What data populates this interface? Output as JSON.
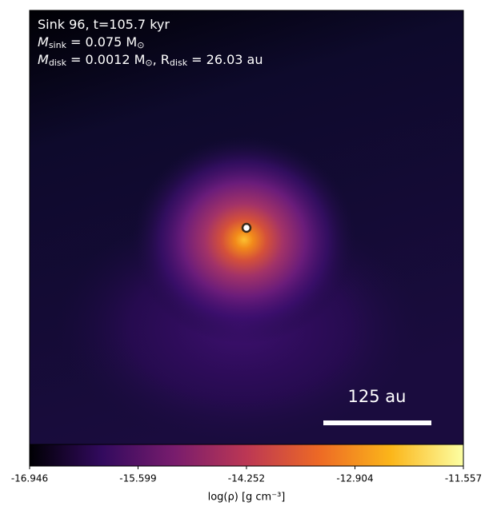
{
  "chart_data": {
    "type": "density-map",
    "annotation_lines": [
      [
        {
          "text": "Sink 96, t=105.7 kyr"
        }
      ],
      [
        {
          "text": "M"
        },
        {
          "sub": "sink"
        },
        {
          "text": " = 0.075 M"
        },
        {
          "sub": "⊙"
        }
      ],
      [
        {
          "text": "M"
        },
        {
          "sub": "disk"
        },
        {
          "text": " = 0.0012 M"
        },
        {
          "sub": "⊙"
        },
        {
          "text": ", R"
        },
        {
          "sub": "disk"
        },
        {
          "text": " = 26.03 au"
        }
      ]
    ],
    "scale_bar_label": "125 au",
    "colorbar": {
      "label": "log(ρ) [g cm⁻³]",
      "lim": [
        -16.946,
        -11.557
      ],
      "ticks": [
        -16.946,
        -15.599,
        -14.252,
        -12.904,
        -11.557
      ],
      "colormap": [
        "#000004",
        "#320a5e",
        "#781c6d",
        "#bc3754",
        "#ed6925",
        "#fbb61a",
        "#fcffa4"
      ]
    }
  }
}
